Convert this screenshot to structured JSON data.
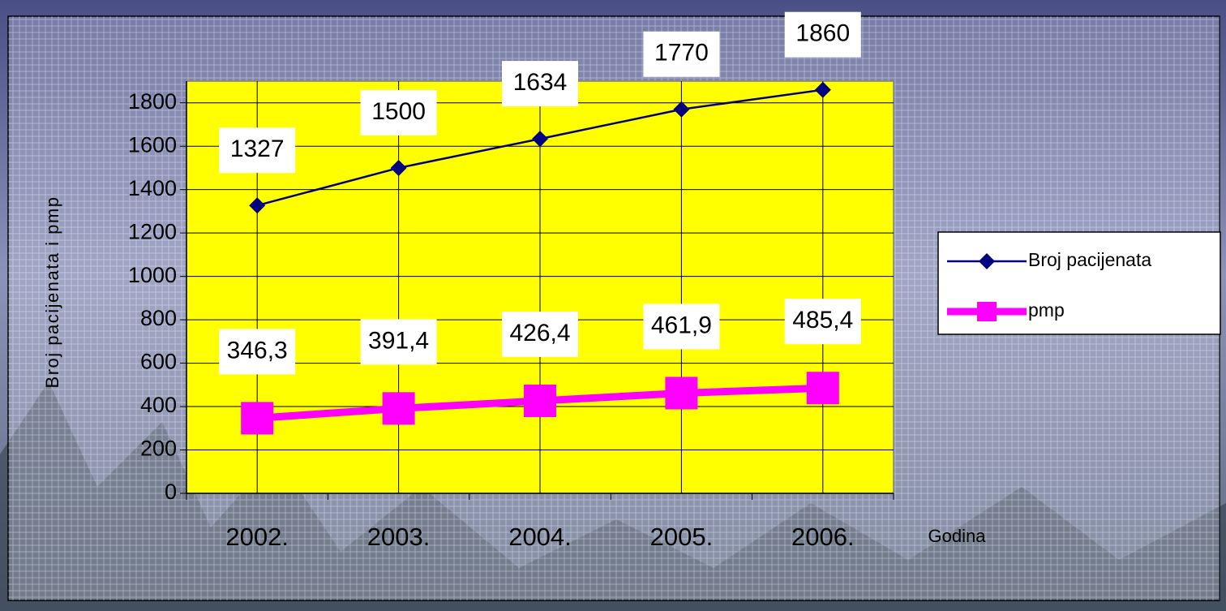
{
  "chart_data": {
    "type": "line",
    "y_label": "Broj pacijenata i pmp",
    "x_label": "Godina",
    "categories": [
      "2002.",
      "2003.",
      "2004.",
      "2005.",
      "2006."
    ],
    "series": [
      {
        "name": "Broj pacijenata",
        "color": "#000080",
        "marker": "diamond",
        "values": [
          1327,
          1500,
          1634,
          1770,
          1860
        ]
      },
      {
        "name": "pmp",
        "color": "#ff00ff",
        "marker": "square",
        "values": [
          346.3,
          391.4,
          426.4,
          461.9,
          485.4
        ],
        "value_labels": [
          "346,3",
          "391,4",
          "426,4",
          "461,9",
          "485,4"
        ]
      }
    ],
    "ylim": [
      0,
      1900
    ],
    "yticks": [
      0,
      200,
      400,
      600,
      800,
      1000,
      1200,
      1400,
      1600,
      1800
    ],
    "grid": true,
    "legend": "right",
    "plot_background": "#ffff00"
  }
}
